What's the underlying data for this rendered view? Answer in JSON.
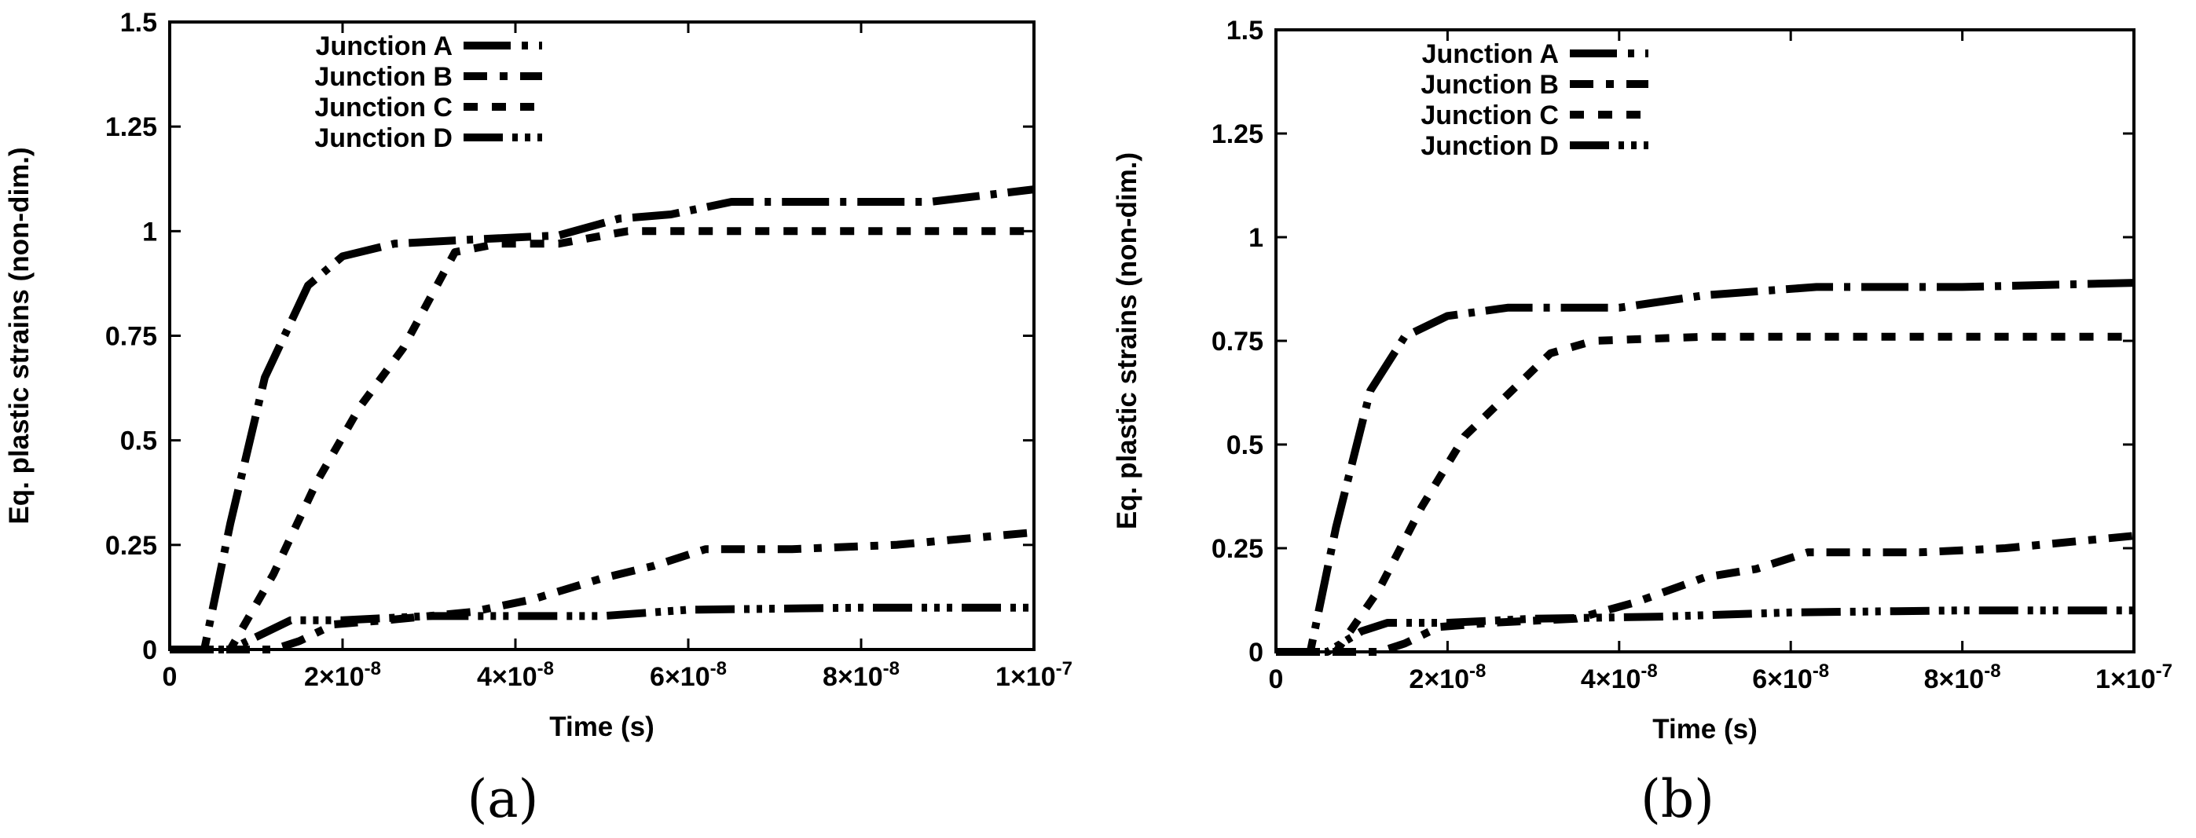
{
  "chart_data": [
    {
      "type": "line",
      "caption": "(a)",
      "xlabel": "Time (s)",
      "ylabel": "Eq. plastic strains (non-dim.)",
      "xlim": [
        0,
        1e-07
      ],
      "ylim": [
        0,
        1.5
      ],
      "xticks": [
        {
          "value": 0,
          "mant": "0",
          "exp": ""
        },
        {
          "value": 2e-08,
          "mant": "2×10",
          "exp": "-8"
        },
        {
          "value": 4e-08,
          "mant": "4×10",
          "exp": "-8"
        },
        {
          "value": 6e-08,
          "mant": "6×10",
          "exp": "-8"
        },
        {
          "value": 8e-08,
          "mant": "8×10",
          "exp": "-8"
        },
        {
          "value": 1e-07,
          "mant": "1×10",
          "exp": "-7"
        }
      ],
      "yticks": [
        {
          "value": 0,
          "label": "0"
        },
        {
          "value": 0.25,
          "label": "0.25"
        },
        {
          "value": 0.5,
          "label": "0.5"
        },
        {
          "value": 0.75,
          "label": "0.75"
        },
        {
          "value": 1,
          "label": "1"
        },
        {
          "value": 1.25,
          "label": "1.25"
        },
        {
          "value": 1.5,
          "label": "1.5"
        }
      ],
      "legend_position": "top-left",
      "series": [
        {
          "name": "Junction A",
          "style": "A",
          "points": [
            [
              0,
              0
            ],
            [
              4e-09,
              0
            ],
            [
              7e-09,
              0.3
            ],
            [
              1.1e-08,
              0.65
            ],
            [
              1.6e-08,
              0.87
            ],
            [
              2e-08,
              0.94
            ],
            [
              2.6e-08,
              0.97
            ],
            [
              3.5e-08,
              0.98
            ],
            [
              4.5e-08,
              0.99
            ],
            [
              5.2e-08,
              1.03
            ],
            [
              5.8e-08,
              1.04
            ],
            [
              6.5e-08,
              1.07
            ],
            [
              7.5e-08,
              1.07
            ],
            [
              8.8e-08,
              1.07
            ],
            [
              1e-07,
              1.1
            ]
          ]
        },
        {
          "name": "Junction B",
          "style": "B",
          "points": [
            [
              0,
              0
            ],
            [
              1.2e-08,
              0
            ],
            [
              1.5e-08,
              0.02
            ],
            [
              1.9e-08,
              0.06
            ],
            [
              2.5e-08,
              0.07
            ],
            [
              3.5e-08,
              0.09
            ],
            [
              4.2e-08,
              0.12
            ],
            [
              5e-08,
              0.17
            ],
            [
              5.6e-08,
              0.2
            ],
            [
              6.2e-08,
              0.24
            ],
            [
              7.2e-08,
              0.24
            ],
            [
              8.4e-08,
              0.25
            ],
            [
              1e-07,
              0.28
            ]
          ]
        },
        {
          "name": "Junction C",
          "style": "C",
          "points": [
            [
              0,
              0
            ],
            [
              7e-09,
              0
            ],
            [
              1.2e-08,
              0.18
            ],
            [
              1.7e-08,
              0.4
            ],
            [
              2.2e-08,
              0.58
            ],
            [
              2.7e-08,
              0.72
            ],
            [
              3.3e-08,
              0.95
            ],
            [
              3.8e-08,
              0.97
            ],
            [
              4.5e-08,
              0.97
            ],
            [
              5.3e-08,
              1
            ],
            [
              1e-07,
              1
            ]
          ]
        },
        {
          "name": "Junction D",
          "style": "D",
          "points": [
            [
              0,
              0
            ],
            [
              7e-09,
              0
            ],
            [
              1.1e-08,
              0.04
            ],
            [
              1.4e-08,
              0.07
            ],
            [
              2e-08,
              0.07
            ],
            [
              3e-08,
              0.08
            ],
            [
              5e-08,
              0.08
            ],
            [
              6e-08,
              0.095
            ],
            [
              8e-08,
              0.1
            ],
            [
              1e-07,
              0.1
            ]
          ]
        }
      ]
    },
    {
      "type": "line",
      "caption": "(b)",
      "xlabel": "Time (s)",
      "ylabel": "Eq. plastic strains (non-dim.)",
      "xlim": [
        0,
        1e-07
      ],
      "ylim": [
        0,
        1.5
      ],
      "xticks": [
        {
          "value": 0,
          "mant": "0",
          "exp": ""
        },
        {
          "value": 2e-08,
          "mant": "2×10",
          "exp": "-8"
        },
        {
          "value": 4e-08,
          "mant": "4×10",
          "exp": "-8"
        },
        {
          "value": 6e-08,
          "mant": "6×10",
          "exp": "-8"
        },
        {
          "value": 8e-08,
          "mant": "8×10",
          "exp": "-8"
        },
        {
          "value": 1e-07,
          "mant": "1×10",
          "exp": "-7"
        }
      ],
      "yticks": [
        {
          "value": 0,
          "label": "0"
        },
        {
          "value": 0.25,
          "label": "0.25"
        },
        {
          "value": 0.5,
          "label": "0.5"
        },
        {
          "value": 0.75,
          "label": "0.75"
        },
        {
          "value": 1,
          "label": "1"
        },
        {
          "value": 1.25,
          "label": "1.25"
        },
        {
          "value": 1.5,
          "label": "1.5"
        }
      ],
      "legend_position": "top-left",
      "series": [
        {
          "name": "Junction A",
          "style": "A",
          "points": [
            [
              0,
              0
            ],
            [
              4e-09,
              0
            ],
            [
              7e-09,
              0.3
            ],
            [
              1.1e-08,
              0.63
            ],
            [
              1.5e-08,
              0.76
            ],
            [
              2e-08,
              0.81
            ],
            [
              2.7e-08,
              0.83
            ],
            [
              4e-08,
              0.83
            ],
            [
              5e-08,
              0.86
            ],
            [
              6.3e-08,
              0.88
            ],
            [
              8e-08,
              0.88
            ],
            [
              1e-07,
              0.89
            ]
          ]
        },
        {
          "name": "Junction B",
          "style": "B",
          "points": [
            [
              0,
              0
            ],
            [
              1.2e-08,
              0
            ],
            [
              1.5e-08,
              0.02
            ],
            [
              1.9e-08,
              0.06
            ],
            [
              2.5e-08,
              0.07
            ],
            [
              3.5e-08,
              0.08
            ],
            [
              4.2e-08,
              0.12
            ],
            [
              5e-08,
              0.18
            ],
            [
              5.6e-08,
              0.2
            ],
            [
              6.2e-08,
              0.24
            ],
            [
              7.5e-08,
              0.24
            ],
            [
              8.5e-08,
              0.25
            ],
            [
              1e-07,
              0.28
            ]
          ]
        },
        {
          "name": "Junction C",
          "style": "C",
          "points": [
            [
              0,
              0
            ],
            [
              7e-09,
              0
            ],
            [
              1.2e-08,
              0.15
            ],
            [
              1.7e-08,
              0.35
            ],
            [
              2.2e-08,
              0.52
            ],
            [
              2.7e-08,
              0.62
            ],
            [
              3.2e-08,
              0.72
            ],
            [
              3.7e-08,
              0.75
            ],
            [
              5e-08,
              0.76
            ],
            [
              1e-07,
              0.76
            ]
          ]
        },
        {
          "name": "Junction D",
          "style": "D",
          "points": [
            [
              0,
              0
            ],
            [
              6e-09,
              0
            ],
            [
              1e-08,
              0.05
            ],
            [
              1.3e-08,
              0.07
            ],
            [
              2e-08,
              0.07
            ],
            [
              3e-08,
              0.08
            ],
            [
              4.5e-08,
              0.085
            ],
            [
              6e-08,
              0.095
            ],
            [
              8e-08,
              0.1
            ],
            [
              1e-07,
              0.1
            ]
          ]
        }
      ]
    }
  ]
}
